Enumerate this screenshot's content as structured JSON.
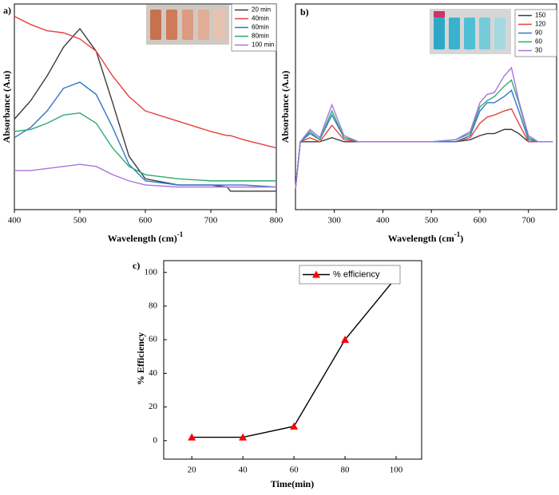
{
  "chart_data": [
    {
      "type": "line",
      "panel_label": "a)",
      "y_label": "Absorbance (A.u)",
      "x_label_parts": [
        "Wavelength (cm)",
        "-1"
      ],
      "x": [
        400,
        425,
        450,
        475,
        500,
        525,
        550,
        575,
        600,
        650,
        700,
        725,
        730,
        750,
        800
      ],
      "xlim": [
        400,
        800
      ],
      "xticks": [
        400,
        500,
        600,
        700,
        800
      ],
      "ylim": [
        0,
        1
      ],
      "series": [
        {
          "name": "20 min",
          "color": "#3a3a3a",
          "values": [
            0.44,
            0.53,
            0.65,
            0.79,
            0.88,
            0.77,
            0.52,
            0.26,
            0.15,
            0.12,
            0.12,
            0.11,
            0.09,
            0.09,
            0.09
          ]
        },
        {
          "name": "40min",
          "color": "#e8403f",
          "values": [
            0.94,
            0.9,
            0.87,
            0.86,
            0.83,
            0.77,
            0.65,
            0.55,
            0.48,
            0.43,
            0.38,
            0.36,
            0.36,
            0.34,
            0.3
          ]
        },
        {
          "name": "60min",
          "color": "#2f78c8",
          "values": [
            0.35,
            0.4,
            0.48,
            0.59,
            0.62,
            0.56,
            0.4,
            0.22,
            0.14,
            0.12,
            0.12,
            0.12,
            0.12,
            0.12,
            0.11
          ]
        },
        {
          "name": "80min",
          "color": "#2eaa6e",
          "values": [
            0.38,
            0.39,
            0.42,
            0.46,
            0.47,
            0.42,
            0.3,
            0.21,
            0.17,
            0.15,
            0.14,
            0.14,
            0.14,
            0.14,
            0.14
          ]
        },
        {
          "name": "100 min",
          "color": "#a873e0",
          "values": [
            0.19,
            0.19,
            0.2,
            0.21,
            0.22,
            0.21,
            0.17,
            0.14,
            0.12,
            0.11,
            0.11,
            0.11,
            0.11,
            0.11,
            0.11
          ]
        }
      ]
    },
    {
      "type": "line",
      "panel_label": "b)",
      "y_label": "Absorbance (A.u)",
      "x_label_parts": [
        "Wavelength (cm",
        "-1",
        ")"
      ],
      "x": [
        220,
        230,
        250,
        270,
        295,
        320,
        350,
        400,
        500,
        550,
        580,
        600,
        615,
        630,
        650,
        665,
        680,
        700,
        720,
        750
      ],
      "xlim": [
        220,
        758
      ],
      "xticks": [
        300,
        400,
        500,
        600,
        700
      ],
      "ylim": [
        0,
        1
      ],
      "series": [
        {
          "name": "150",
          "color": "#3a3a3a",
          "values": [
            0.1,
            0.33,
            0.33,
            0.33,
            0.35,
            0.33,
            0.33,
            0.33,
            0.33,
            0.33,
            0.34,
            0.36,
            0.37,
            0.37,
            0.39,
            0.39,
            0.37,
            0.33,
            0.33,
            0.33
          ]
        },
        {
          "name": "120",
          "color": "#e8403f",
          "values": [
            0.1,
            0.33,
            0.35,
            0.33,
            0.41,
            0.34,
            0.33,
            0.33,
            0.33,
            0.33,
            0.35,
            0.42,
            0.45,
            0.46,
            0.48,
            0.49,
            0.42,
            0.33,
            0.33,
            0.33
          ]
        },
        {
          "name": "90",
          "color": "#2f78c8",
          "values": [
            0.1,
            0.33,
            0.37,
            0.34,
            0.46,
            0.35,
            0.33,
            0.33,
            0.33,
            0.33,
            0.36,
            0.48,
            0.52,
            0.52,
            0.55,
            0.58,
            0.48,
            0.34,
            0.33,
            0.33
          ]
        },
        {
          "name": "60",
          "color": "#2eaa6e",
          "values": [
            0.1,
            0.33,
            0.38,
            0.34,
            0.48,
            0.35,
            0.33,
            0.33,
            0.33,
            0.34,
            0.37,
            0.5,
            0.53,
            0.55,
            0.6,
            0.63,
            0.52,
            0.35,
            0.33,
            0.33
          ]
        },
        {
          "name": "30",
          "color": "#a873e0",
          "values": [
            0.1,
            0.33,
            0.39,
            0.35,
            0.51,
            0.36,
            0.33,
            0.33,
            0.33,
            0.34,
            0.38,
            0.52,
            0.56,
            0.57,
            0.65,
            0.69,
            0.53,
            0.36,
            0.33,
            0.33
          ]
        }
      ]
    },
    {
      "type": "line",
      "panel_label": "c)",
      "y_label": "% Efficiency",
      "x_label": "Time(min)",
      "marker": "triangle",
      "x": [
        20,
        40,
        60,
        80,
        100
      ],
      "xlim": [
        9,
        110
      ],
      "xticks": [
        20,
        40,
        60,
        80,
        100
      ],
      "ylim": [
        -11,
        107
      ],
      "yticks": [
        0,
        20,
        40,
        60,
        80,
        100
      ],
      "series": [
        {
          "name": "% efficiency",
          "color": "#000000",
          "marker_color": "#ff0000",
          "values": [
            2,
            2,
            8.5,
            60,
            97
          ]
        }
      ]
    }
  ]
}
